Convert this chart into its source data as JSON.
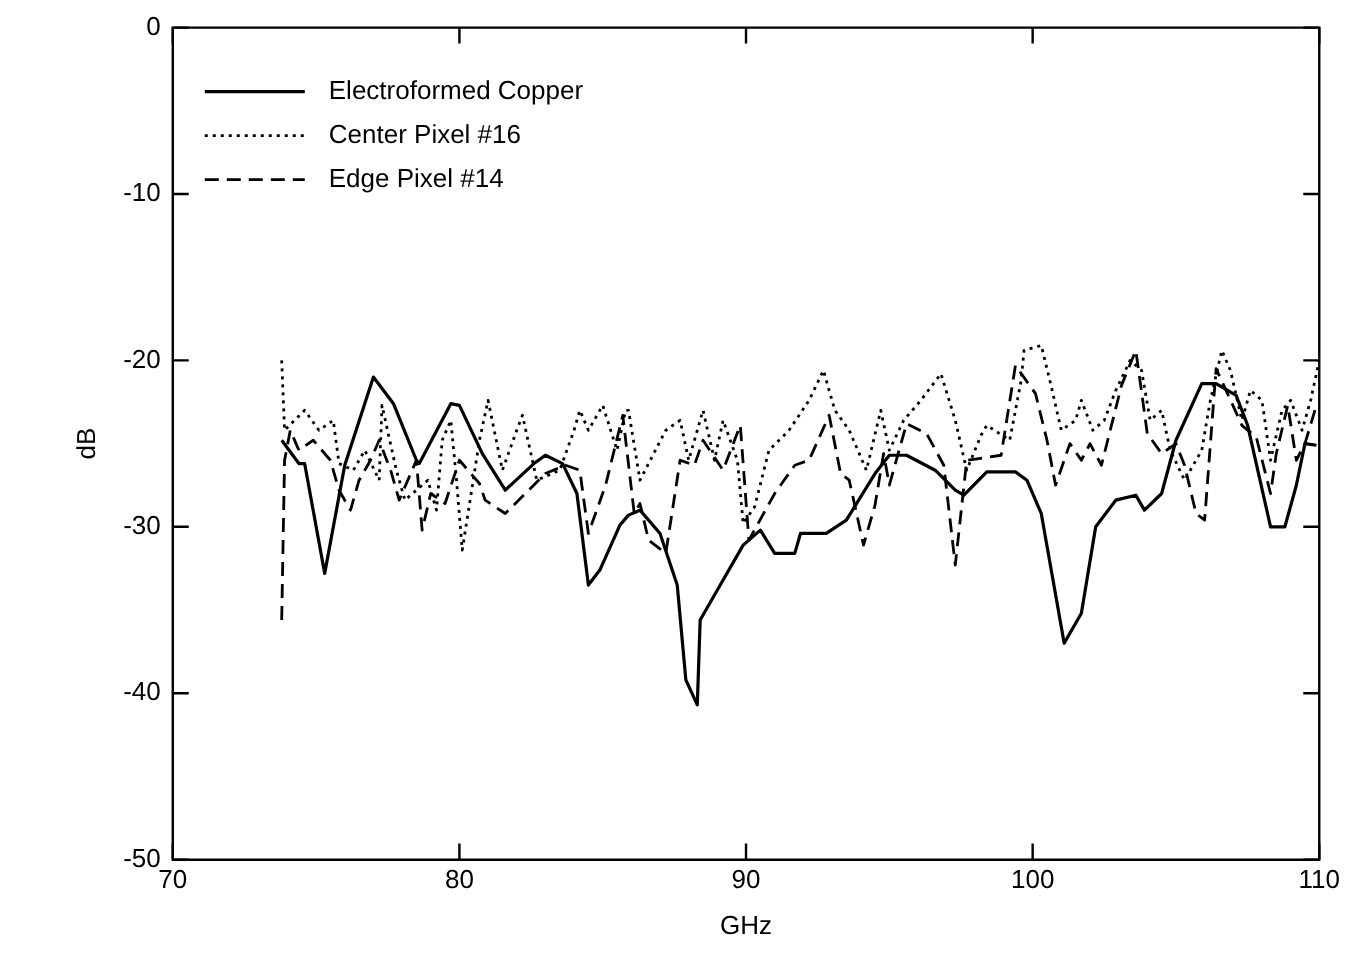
{
  "chart_data": {
    "type": "line",
    "xlabel": "GHz",
    "ylabel": "dB",
    "xlim": [
      70,
      110
    ],
    "ylim": [
      -50,
      0
    ],
    "xticks": [
      70,
      80,
      90,
      100,
      110
    ],
    "yticks": [
      -50,
      -40,
      -30,
      -20,
      -10,
      0
    ],
    "grid": false,
    "legend": "top left",
    "marker": "none",
    "series": [
      {
        "name": "Electroformed Copper",
        "color": "#000000",
        "line_style": "solid",
        "x": [
          73.8,
          74.4,
          74.6,
          75.3,
          76.0,
          77.0,
          77.7,
          78.5,
          78.6,
          79.7,
          80.0,
          80.8,
          81.6,
          82.6,
          83.0,
          83.6,
          84.1,
          84.5,
          84.9,
          85.6,
          85.9,
          86.3,
          87.0,
          87.6,
          87.9,
          88.3,
          88.4,
          89.1,
          89.9,
          90.5,
          91.0,
          91.7,
          91.9,
          92.8,
          93.5,
          94.5,
          95.0,
          95.6,
          96.6,
          97.3,
          97.6,
          98.4,
          99.4,
          99.8,
          100.3,
          101.1,
          101.7,
          102.2,
          102.9,
          103.6,
          103.9,
          104.5,
          105.0,
          105.9,
          106.4,
          107.1,
          107.5,
          108.3,
          108.8,
          109.2,
          109.5,
          109.9
        ],
        "values": [
          -24.8,
          -26.2,
          -26.2,
          -32.8,
          -26.3,
          -21.0,
          -22.6,
          -26.0,
          -26.2,
          -22.6,
          -22.7,
          -25.6,
          -27.8,
          -26.2,
          -25.7,
          -26.2,
          -28.0,
          -33.5,
          -32.6,
          -29.9,
          -29.3,
          -29.0,
          -30.4,
          -33.5,
          -39.2,
          -40.7,
          -35.6,
          -33.5,
          -31.1,
          -30.2,
          -31.6,
          -31.6,
          -30.4,
          -30.4,
          -29.6,
          -26.8,
          -25.7,
          -25.7,
          -26.6,
          -27.8,
          -28.1,
          -26.7,
          -26.7,
          -27.2,
          -29.2,
          -37.0,
          -35.2,
          -30.0,
          -28.4,
          -28.1,
          -29.0,
          -28.0,
          -24.8,
          -21.4,
          -21.4,
          -22.1,
          -23.9,
          -30.0,
          -30.0,
          -27.5,
          -25.0,
          -25.1
        ]
      },
      {
        "name": "Center Pixel #16",
        "color": "#000000",
        "line_style": "dotted",
        "x": [
          73.8,
          73.9,
          74.6,
          75.1,
          75.6,
          75.8,
          76.3,
          76.7,
          77.2,
          77.3,
          77.8,
          78.1,
          78.9,
          79.2,
          79.4,
          79.7,
          79.9,
          80.1,
          80.7,
          81.0,
          81.5,
          82.0,
          82.2,
          82.7,
          83.5,
          84.0,
          84.2,
          84.5,
          85.0,
          85.5,
          85.8,
          85.9,
          86.3,
          86.6,
          87.2,
          87.7,
          88.0,
          88.5,
          88.9,
          89.2,
          89.7,
          89.9,
          90.3,
          90.8,
          91.5,
          92.2,
          92.7,
          93.1,
          93.6,
          94.2,
          94.7,
          95.0,
          95.5,
          96.1,
          96.8,
          97.3,
          97.7,
          98.2,
          98.4,
          99.2,
          99.6,
          99.7,
          100.3,
          100.6,
          101.0,
          101.5,
          101.7,
          102.1,
          102.5,
          102.9,
          103.4,
          103.8,
          104.1,
          104.5,
          104.8,
          105.3,
          105.9,
          106.2,
          106.6,
          106.9,
          107.3,
          107.6,
          108.0,
          108.3,
          108.7,
          109.0,
          109.4,
          109.7,
          110.0
        ],
        "values": [
          -20.0,
          -24.2,
          -23.0,
          -24.2,
          -23.6,
          -26.2,
          -26.6,
          -25.4,
          -27.2,
          -22.7,
          -26.6,
          -28.4,
          -27.2,
          -29.0,
          -24.8,
          -23.6,
          -27.2,
          -31.4,
          -24.8,
          -22.4,
          -26.6,
          -24.2,
          -23.3,
          -27.2,
          -26.6,
          -24.2,
          -23.0,
          -24.2,
          -22.7,
          -25.4,
          -23.0,
          -23.0,
          -27.2,
          -26.2,
          -24.2,
          -23.6,
          -26.0,
          -23.0,
          -26.0,
          -23.6,
          -26.0,
          -29.8,
          -28.8,
          -25.4,
          -24.2,
          -22.4,
          -20.6,
          -23.0,
          -24.2,
          -26.6,
          -23.0,
          -25.4,
          -23.6,
          -22.4,
          -20.8,
          -23.6,
          -26.6,
          -24.5,
          -23.9,
          -24.8,
          -21.2,
          -19.4,
          -19.1,
          -21.2,
          -24.2,
          -23.6,
          -22.4,
          -24.2,
          -23.6,
          -21.8,
          -20.0,
          -20.6,
          -23.6,
          -23.0,
          -25.4,
          -27.2,
          -25.4,
          -22.4,
          -19.4,
          -20.6,
          -23.6,
          -21.8,
          -22.4,
          -26.0,
          -23.0,
          -22.4,
          -24.2,
          -22.4,
          -20.0
        ]
      },
      {
        "name": "Edge Pixel #14",
        "color": "#000000",
        "line_style": "dashed",
        "x": [
          73.8,
          73.9,
          74.1,
          74.4,
          74.9,
          75.5,
          75.8,
          76.2,
          76.5,
          76.9,
          77.2,
          77.6,
          77.9,
          78.5,
          78.7,
          79.0,
          79.5,
          80.0,
          80.7,
          80.9,
          81.6,
          82.3,
          83.0,
          83.7,
          84.2,
          84.5,
          85.1,
          85.7,
          86.1,
          86.3,
          86.6,
          87.2,
          87.7,
          88.2,
          88.5,
          89.2,
          89.8,
          90.1,
          91.0,
          91.7,
          92.2,
          92.9,
          93.3,
          93.6,
          94.1,
          94.5,
          94.8,
          95.0,
          95.6,
          96.3,
          96.9,
          97.3,
          97.7,
          98.9,
          99.4,
          100.1,
          100.5,
          100.8,
          101.3,
          101.7,
          102.0,
          102.4,
          103.1,
          103.6,
          104.0,
          104.5,
          105.0,
          105.3,
          105.7,
          106.0,
          106.4,
          106.8,
          107.3,
          107.8,
          108.3,
          108.5,
          108.9,
          109.2,
          109.5,
          109.9
        ],
        "values": [
          -35.6,
          -26.0,
          -24.2,
          -25.4,
          -24.8,
          -26.0,
          -27.8,
          -29.0,
          -27.2,
          -26.0,
          -24.8,
          -26.6,
          -28.4,
          -26.0,
          -30.2,
          -28.0,
          -28.6,
          -26.0,
          -27.4,
          -28.4,
          -29.2,
          -28.0,
          -26.8,
          -26.3,
          -26.6,
          -30.4,
          -27.5,
          -23.3,
          -29.2,
          -28.6,
          -30.8,
          -31.6,
          -26.0,
          -26.3,
          -24.8,
          -26.6,
          -23.9,
          -30.8,
          -28.0,
          -26.3,
          -26.0,
          -23.3,
          -26.8,
          -27.2,
          -31.1,
          -28.7,
          -25.6,
          -27.5,
          -23.8,
          -24.4,
          -26.3,
          -32.3,
          -26.0,
          -25.7,
          -20.3,
          -22.0,
          -24.8,
          -27.5,
          -25.0,
          -26.0,
          -25.0,
          -26.3,
          -21.5,
          -19.4,
          -24.4,
          -25.6,
          -25.0,
          -26.3,
          -29.2,
          -29.6,
          -20.5,
          -22.0,
          -23.9,
          -24.6,
          -28.0,
          -25.6,
          -22.7,
          -26.0,
          -25.0,
          -22.7
        ]
      }
    ]
  }
}
